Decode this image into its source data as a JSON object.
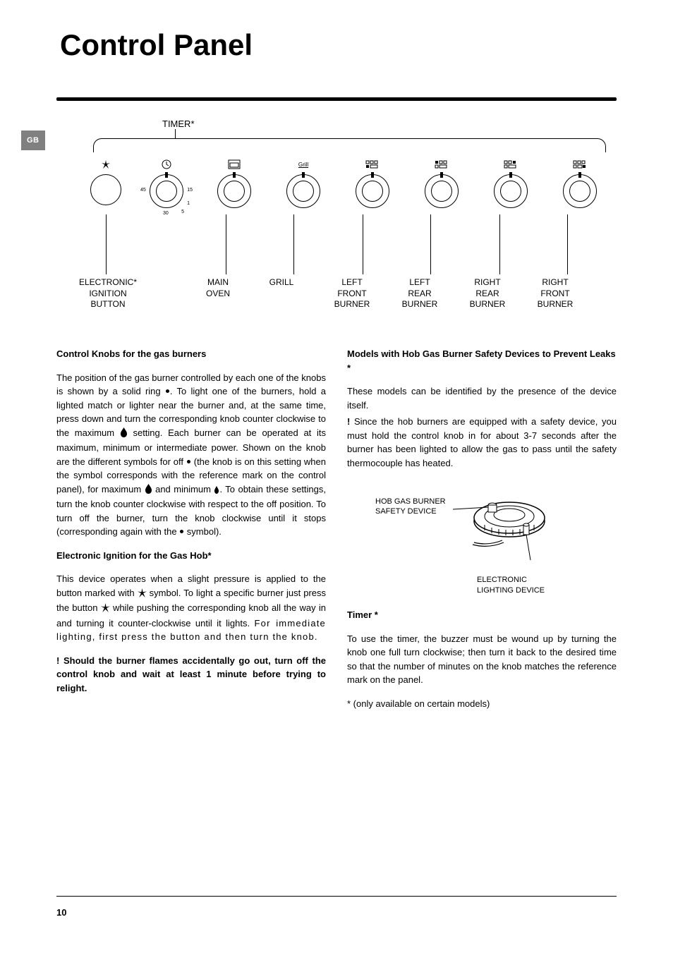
{
  "page_title": "Control Panel",
  "gb_tab": "GB",
  "page_number": "10",
  "diagram": {
    "timer_label": "TIMER*",
    "knob_labels": [
      "ELECTRONIC*\nIGNITION\nBUTTON",
      "MAIN\nOVEN",
      "GRILL",
      "LEFT\nFRONT\nBURNER",
      "LEFT\nREAR\nBURNER",
      "RIGHT\nREAR\nBURNER",
      "RIGHT\nFRONT\nBURNER"
    ],
    "timer_marks": [
      "45",
      "30",
      "15",
      "5",
      "1"
    ],
    "grill_icon_label": "Grill"
  },
  "left_column": {
    "h1": "Control Knobs for the gas burners",
    "p1a": "The position of the gas burner controlled by each one of the knobs is shown by a solid ring ",
    "p1b": ".  To light one of the burners, hold a lighted match or lighter near the burner and, at the same time, press down and turn the corresponding knob counter clockwise to the maximum ",
    "p1c": " setting. Each burner can be operated at its maximum, minimum or intermediate power. Shown on the knob are the different symbols for off ",
    "p1d": " (the knob is on this setting when the symbol corresponds with the reference mark on the control panel), for maximum ",
    "p1e": " and minimum ",
    "p1f": ". To obtain these settings, turn the knob counter clockwise with respect to the off position. To turn off the burner, turn the knob clockwise until it stops (corresponding again with the ",
    "p1g": " symbol).",
    "h2": "Electronic Ignition for the Gas Hob*",
    "p2a": "This device operates when a slight pressure is applied to the button marked with ",
    "p2b": " symbol. To light a specific burner just press the button ",
    "p2c": " while pushing the corresponding knob all the way in and turning it counter-clockwise until it lights. ",
    "p2d": "For immediate lighting, first press the button and then turn the knob.",
    "warn_prefix": "! ",
    "warn": "Should the burner flames accidentally go out, turn off the control knob and wait at least 1 minute before trying to relight."
  },
  "right_column": {
    "h1": "Models with Hob Gas Burner Safety Devices to Prevent Leaks *",
    "p1": "These models can be identified by the presence of the device itself.",
    "p2_prefix": "! ",
    "p2": "Since the hob burners are equipped with a safety device, you must hold the control knob in for about 3-7 seconds after the burner has been lighted to allow the gas to pass until the safety thermocouple has heated.",
    "diagram_label1": "HOB GAS BURNER\nSAFETY DEVICE",
    "diagram_label2": "ELECTRONIC\nLIGHTING DEVICE",
    "h2": "Timer *",
    "p3": "To use the timer, the buzzer must be wound up by turning the knob one full turn clockwise; then turn it back to the desired time so that the number of minutes on the knob matches the reference mark on the panel.",
    "footnote": "* (only available on certain models)"
  },
  "colors": {
    "text": "#000000",
    "tab_bg": "#808080",
    "tab_fg": "#ffffff"
  }
}
